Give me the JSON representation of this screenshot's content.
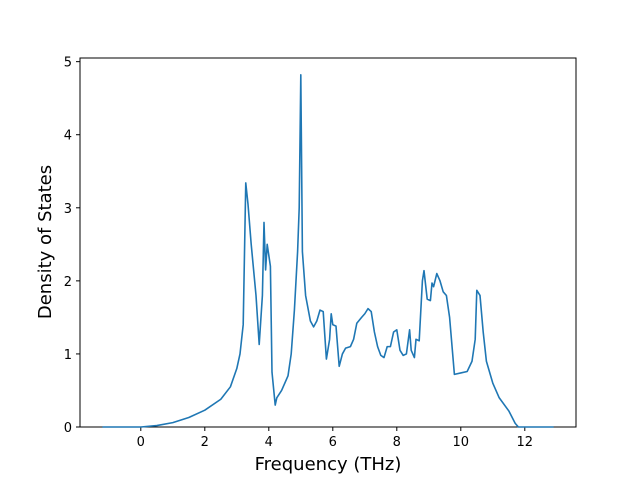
{
  "chart_data": {
    "type": "line",
    "xlabel": "Frequency (THz)",
    "ylabel": "Density of States",
    "color": "#1f77b4",
    "x": [
      -1.2,
      0,
      0.5,
      1,
      1.5,
      2,
      2.5,
      2.8,
      3.0,
      3.1,
      3.2,
      3.28,
      3.35,
      3.45,
      3.6,
      3.7,
      3.8,
      3.85,
      3.9,
      3.95,
      4.05,
      4.1,
      4.2,
      4.25,
      4.4,
      4.6,
      4.7,
      4.8,
      4.9,
      4.95,
      5.0,
      5.05,
      5.15,
      5.3,
      5.4,
      5.5,
      5.6,
      5.7,
      5.8,
      5.9,
      5.95,
      6.0,
      6.1,
      6.2,
      6.3,
      6.4,
      6.55,
      6.65,
      6.75,
      6.9,
      7.0,
      7.1,
      7.2,
      7.3,
      7.4,
      7.5,
      7.6,
      7.7,
      7.8,
      7.9,
      8.0,
      8.1,
      8.2,
      8.3,
      8.4,
      8.45,
      8.55,
      8.6,
      8.7,
      8.8,
      8.85,
      8.95,
      9.05,
      9.1,
      9.15,
      9.25,
      9.35,
      9.45,
      9.55,
      9.65,
      9.8,
      10.0,
      10.2,
      10.35,
      10.45,
      10.5,
      10.6,
      10.7,
      10.8,
      11.0,
      11.2,
      11.5,
      11.7,
      11.8,
      12.9
    ],
    "values": [
      0,
      0,
      0.02,
      0.06,
      0.13,
      0.23,
      0.38,
      0.55,
      0.8,
      1.0,
      1.4,
      3.34,
      3.05,
      2.5,
      1.8,
      1.13,
      1.8,
      2.8,
      2.15,
      2.5,
      2.2,
      0.75,
      0.3,
      0.4,
      0.5,
      0.7,
      1.0,
      1.6,
      2.4,
      3.0,
      4.82,
      2.4,
      1.8,
      1.45,
      1.37,
      1.45,
      1.6,
      1.58,
      0.93,
      1.2,
      1.55,
      1.4,
      1.38,
      0.83,
      1.0,
      1.08,
      1.1,
      1.2,
      1.42,
      1.5,
      1.55,
      1.62,
      1.58,
      1.3,
      1.1,
      0.98,
      0.95,
      1.1,
      1.1,
      1.3,
      1.33,
      1.05,
      0.98,
      1.0,
      1.33,
      1.05,
      0.95,
      1.2,
      1.18,
      2.0,
      2.14,
      1.75,
      1.73,
      1.97,
      1.92,
      2.1,
      2.0,
      1.85,
      1.8,
      1.5,
      0.72,
      0.74,
      0.76,
      0.9,
      1.2,
      1.87,
      1.8,
      1.3,
      0.9,
      0.6,
      0.4,
      0.22,
      0.05,
      0,
      0
    ],
    "xlim": [
      -1.9,
      13.6
    ],
    "xticks": [
      0,
      2,
      4,
      6,
      8,
      10,
      12
    ],
    "ylim": [
      0,
      5.05
    ],
    "yticks": [
      0,
      1,
      2,
      3,
      4,
      5
    ]
  }
}
